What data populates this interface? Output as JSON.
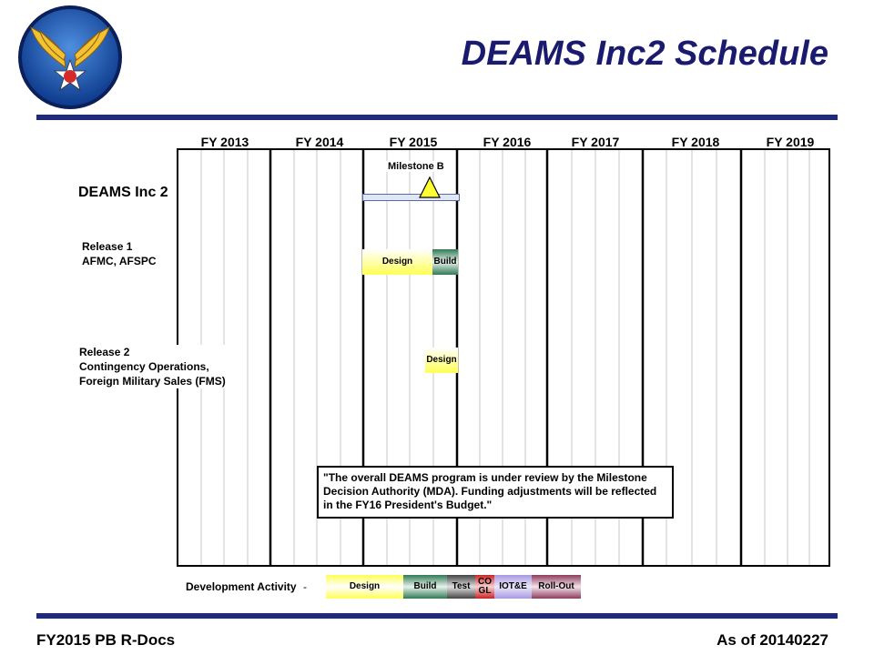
{
  "title": "DEAMS Inc2 Schedule",
  "fiscal_years": [
    "FY  2013",
    "FY  2014",
    "FY  2015",
    "FY  2016",
    "FY  2017",
    "FY  2018",
    "FY  2019"
  ],
  "rows": {
    "inc2": {
      "label": "DEAMS Inc 2",
      "milestone_label": "Milestone B"
    },
    "release1": {
      "line1": "Release 1",
      "line2": "AFMC, AFSPC",
      "design": "Design",
      "build": "Build"
    },
    "release2": {
      "line1": "Release 2",
      "line2": "Contingency Operations,",
      "line3": "Foreign Military Sales (FMS)",
      "design": "Design"
    }
  },
  "note": "\"The overall DEAMS program is under review by the Milestone Decision Authority (MDA). Funding adjustments will be reflected in the FY16 President's Budget.\"",
  "legend": {
    "label": "Development Activity",
    "dash": "-",
    "design": "Design",
    "build": "Build",
    "test": "Test",
    "cogl_line1": "CO",
    "cogl_line2": "GL",
    "iote": "IOT&E",
    "rollout": "Roll-Out"
  },
  "footer": {
    "left": "FY2015 PB R-Docs",
    "right": "As of 20140227"
  },
  "colors": {
    "title": "#1a1a6e",
    "rule": "#1f2a78",
    "design": "#ffff66",
    "build": "#3f8f6b",
    "test": "#555555",
    "cogl": "#cc3333",
    "iote": "#b3a6e6",
    "rollout": "#9a4a6a"
  }
}
